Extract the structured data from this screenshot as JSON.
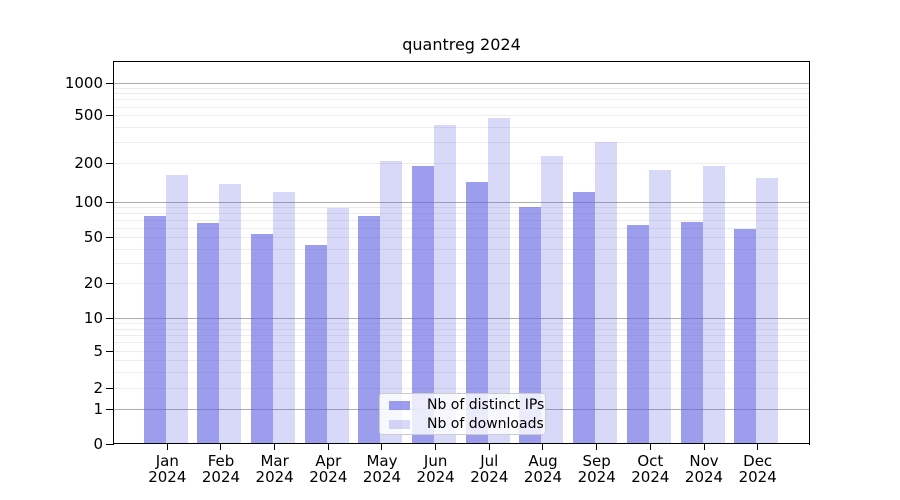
{
  "chart_data": {
    "type": "bar",
    "title": "quantreg 2024",
    "months": [
      "Jan",
      "Feb",
      "Mar",
      "Apr",
      "May",
      "Jun",
      "Jul",
      "Aug",
      "Sep",
      "Oct",
      "Nov",
      "Dec"
    ],
    "year": "2024",
    "series": [
      {
        "name": "Nb of distinct IPs",
        "values": [
          76,
          66,
          53,
          43,
          75,
          188,
          141,
          91,
          118,
          64,
          68,
          59
        ]
      },
      {
        "name": "Nb of downloads",
        "values": [
          160,
          137,
          118,
          88,
          205,
          410,
          470,
          226,
          296,
          175,
          187,
          152
        ]
      }
    ],
    "yticks": [
      0,
      1,
      2,
      5,
      10,
      20,
      50,
      100,
      200,
      500,
      1000
    ],
    "ylim": [
      0,
      1000
    ],
    "yscale": "log",
    "grid": true,
    "legend_position": "bottom-center"
  },
  "colors": {
    "bar_distinct_ips": "rgba(99,99,228,0.63)",
    "bar_downloads": "rgba(99,99,228,0.25)",
    "gridline": "#ececec",
    "gridline_power10": "#ababab",
    "spine": "#000000",
    "legend_border": "#cccccc",
    "legend_bg": "rgba(255,255,255,0.8)"
  }
}
